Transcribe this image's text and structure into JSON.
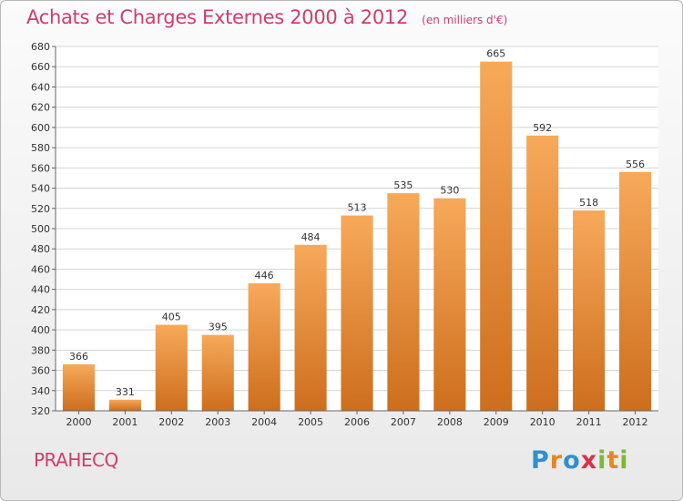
{
  "title": "Achats et Charges Externes 2000 à 2012",
  "subtitle": "(en milliers d'€)",
  "location": "PRAHECQ",
  "brand": {
    "letters": [
      "P",
      "r",
      "o",
      "x",
      "i",
      "t",
      "i"
    ],
    "colors": [
      "#2f8fcf",
      "#e6861e",
      "#2f8fcf",
      "#d7334d",
      "#7cb838",
      "#e6861e",
      "#7cb838"
    ]
  },
  "colors": {
    "title": "#d23c6c",
    "bar_light": "#f7a95a",
    "bar_dark": "#cd6e1d",
    "grid": "#d4d4d4",
    "axis": "#666666"
  },
  "chart_data": {
    "type": "bar",
    "categories": [
      "2000",
      "2001",
      "2002",
      "2003",
      "2004",
      "2005",
      "2006",
      "2007",
      "2008",
      "2009",
      "2010",
      "2011",
      "2012"
    ],
    "values": [
      366,
      331,
      405,
      395,
      446,
      484,
      513,
      535,
      530,
      665,
      592,
      518,
      556
    ],
    "ylim": [
      320,
      680
    ],
    "yticks": [
      320,
      340,
      360,
      380,
      400,
      420,
      440,
      460,
      480,
      500,
      520,
      540,
      560,
      580,
      600,
      620,
      640,
      660,
      680
    ],
    "grid": true,
    "data_labels": true
  }
}
